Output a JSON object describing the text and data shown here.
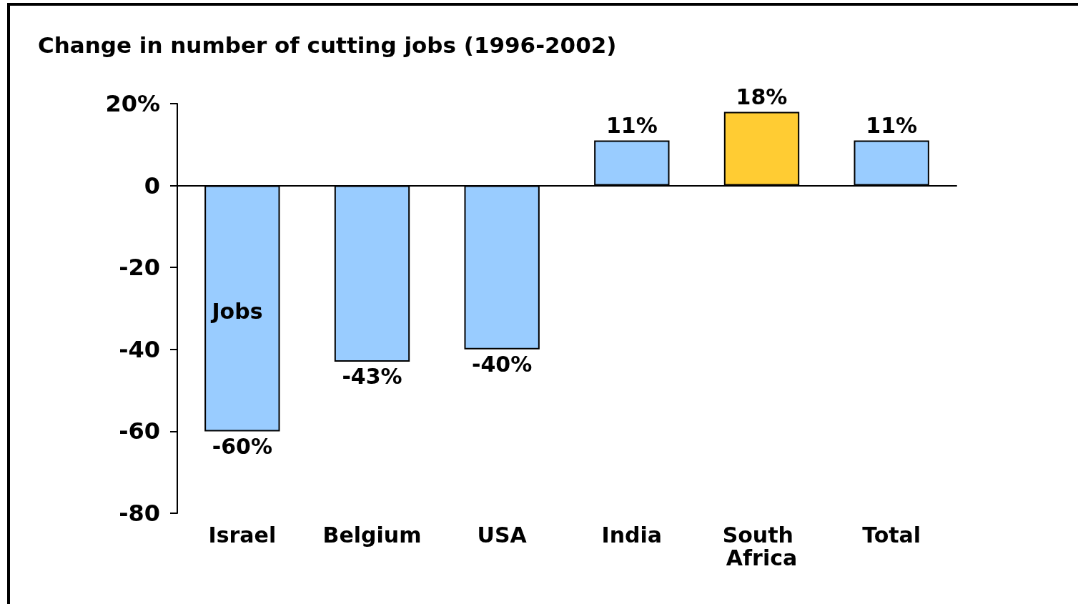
{
  "chart_data": {
    "type": "bar",
    "title": "Change in number of cutting jobs (1996-2002)",
    "categories": [
      "Israel",
      "Belgium",
      "USA",
      "India",
      "South Africa",
      "Total"
    ],
    "values": [
      -60,
      -43,
      -40,
      11,
      18,
      11
    ],
    "colors": [
      "#99ccff",
      "#99ccff",
      "#99ccff",
      "#99ccff",
      "#ffcc33",
      "#99ccff"
    ],
    "value_labels": [
      "-60%",
      "-43%",
      "-40%",
      "11%",
      "18%",
      "11%"
    ],
    "ylim": [
      -80,
      20
    ],
    "yticks": [
      {
        "value": 20,
        "label": "20%"
      },
      0,
      -20,
      -40,
      -60,
      -80
    ],
    "annotations": [
      "Jobs"
    ]
  }
}
